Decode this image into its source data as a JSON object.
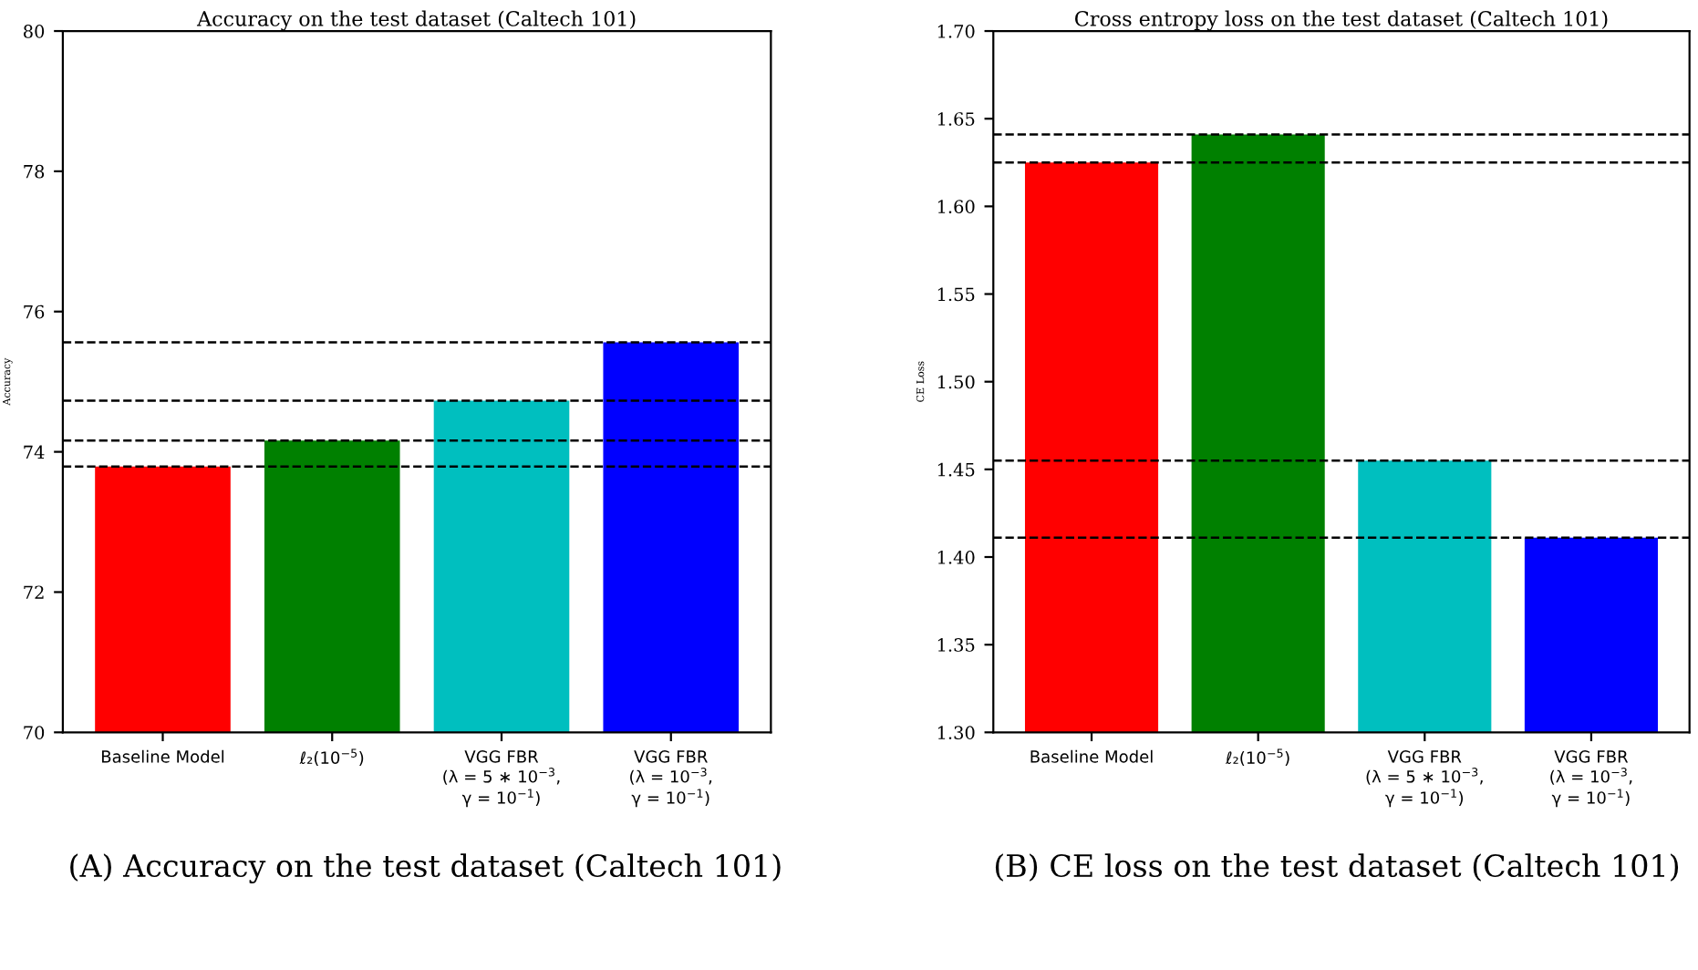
{
  "chart_data": [
    {
      "type": "bar",
      "title": "Accuracy on the test dataset (Caltech 101)",
      "ylabel": "Accuracy",
      "categories": [
        "Baseline Model",
        "ℓ₂(10$^{−5}$)",
        "VGG FBR\n(λ = 5 ∗ 10$^{−3}$,\nγ = 10$^{−1}$)",
        "VGG FBR\n(λ = 10$^{−3}$,\nγ = 10$^{−1}$)"
      ],
      "values": [
        73.79,
        74.16,
        74.73,
        75.56
      ],
      "colors": [
        "#ff0000",
        "#008000",
        "#00bfbf",
        "#0000ff"
      ],
      "ylim": [
        70,
        80
      ],
      "yticks": [
        70,
        72,
        74,
        76,
        78,
        80
      ],
      "ref_lines": [
        {
          "axis": "y",
          "value": 75.56,
          "color": "#000000",
          "line_style": "dashed"
        },
        {
          "axis": "y",
          "value": 74.73,
          "color": "#000000",
          "line_style": "dashed"
        },
        {
          "axis": "y",
          "value": 74.16,
          "color": "#000000",
          "line_style": "dashed"
        },
        {
          "axis": "y",
          "value": 73.79,
          "color": "#000000",
          "line_style": "dashed"
        }
      ],
      "annotations": [
        "(A) Accuracy on the test dataset (Caltech 101)"
      ]
    },
    {
      "type": "bar",
      "title": "Cross entropy loss on the test dataset (Caltech 101)",
      "ylabel": "CE Loss",
      "categories": [
        "Baseline Model",
        "ℓ₂(10$^{−5}$)",
        "VGG FBR\n(λ = 5 ∗ 10$^{−3}$,\nγ = 10$^{−1}$)",
        "VGG FBR\n(λ = 10$^{−3}$,\nγ = 10$^{−1}$)"
      ],
      "values": [
        1.625,
        1.641,
        1.455,
        1.411
      ],
      "colors": [
        "#ff0000",
        "#008000",
        "#00bfbf",
        "#0000ff"
      ],
      "ylim": [
        1.3,
        1.7
      ],
      "yticks": [
        {
          "value": 1.3,
          "label": "1.30"
        },
        1.35,
        {
          "value": 1.4,
          "label": "1.40"
        },
        1.45,
        {
          "value": 1.5,
          "label": "1.50"
        },
        1.55,
        {
          "value": 1.6,
          "label": "1.60"
        },
        1.65,
        {
          "value": 1.7,
          "label": "1.70"
        }
      ],
      "ref_lines": [
        {
          "axis": "y",
          "value": 1.641,
          "color": "#000000",
          "line_style": "dashed"
        },
        {
          "axis": "y",
          "value": 1.625,
          "color": "#000000",
          "line_style": "dashed"
        },
        {
          "axis": "y",
          "value": 1.455,
          "color": "#000000",
          "line_style": "dashed"
        },
        {
          "axis": "y",
          "value": 1.411,
          "color": "#000000",
          "line_style": "dashed"
        }
      ],
      "annotations": [
        "(B) CE loss on the test dataset (Caltech 101)"
      ]
    }
  ]
}
